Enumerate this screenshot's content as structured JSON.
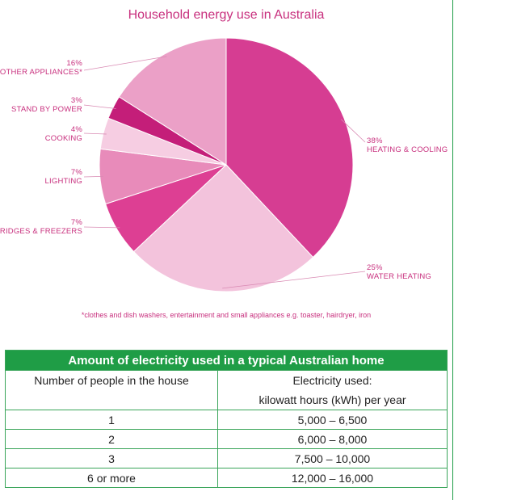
{
  "chart_data": {
    "type": "pie",
    "title": "Household energy use in Australia",
    "slices": [
      {
        "label": "HEATING & COOLING",
        "pct_label": "38%",
        "value": 38,
        "color": "#d63d92"
      },
      {
        "label": "WATER HEATING",
        "pct_label": "25%",
        "value": 25,
        "color": "#f3c3dc"
      },
      {
        "label": "FRIDGES & FREEZERS",
        "pct_label": "7%",
        "value": 7,
        "color": "#dd3f93"
      },
      {
        "label": "LIGHTING",
        "pct_label": "7%",
        "value": 7,
        "color": "#e88bba"
      },
      {
        "label": "COOKING",
        "pct_label": "4%",
        "value": 4,
        "color": "#f6cde2"
      },
      {
        "label": "STAND BY POWER",
        "pct_label": "3%",
        "value": 3,
        "color": "#c41e79"
      },
      {
        "label": "OTHER APPLIANCES*",
        "pct_label": "16%",
        "value": 16,
        "color": "#eba0c7"
      }
    ],
    "footnote": "*clothes and dish washers, entertainment and small appliances e.g. toaster, hairdryer, iron"
  },
  "colors": {
    "title_pink": "#c8307e",
    "table_header_green": "#1f9d46",
    "table_border_green": "#3aa55a"
  },
  "table": {
    "title": "Amount of electricity used in a typical Australian home",
    "col1_header": "Number of people in the house",
    "col2_header_line1": "Electricity used:",
    "col2_header_line2": "kilowatt hours (kWh) per year",
    "rows": [
      {
        "people": "1",
        "kwh": "5,000 – 6,500"
      },
      {
        "people": "2",
        "kwh": "6,000 – 8,000"
      },
      {
        "people": "3",
        "kwh": "7,500 – 10,000"
      },
      {
        "people": "6 or more",
        "kwh": "12,000 – 16,000"
      }
    ]
  }
}
